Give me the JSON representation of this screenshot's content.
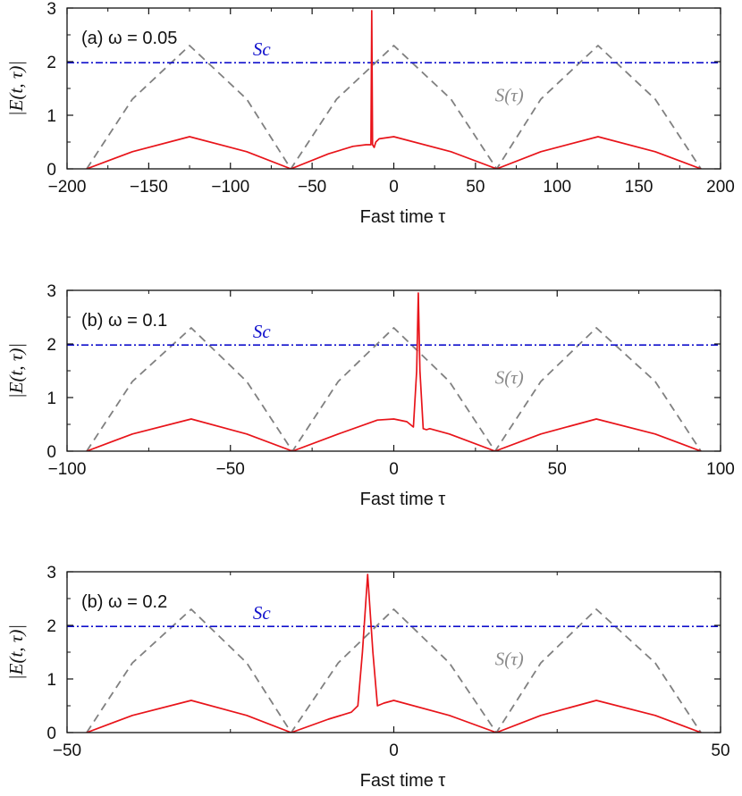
{
  "chart_data": [
    {
      "type": "line",
      "panel_label": "(a) ω = 0.05",
      "xlabel": "Fast time τ",
      "ylabel": "|E(t, τ)|",
      "xlim": [
        -200,
        200
      ],
      "ylim": [
        0,
        3
      ],
      "xticks": [
        "−200",
        "−150",
        "−100",
        "−50",
        "0",
        "50",
        "100",
        "150",
        "200"
      ],
      "yticks": [
        "0",
        "1",
        "2",
        "3"
      ],
      "grid": false,
      "annotations": {
        "threshold_label": "Sc",
        "threshold_value": 1.98,
        "background_label": "S(τ)"
      },
      "series": [
        {
          "style": "dashed",
          "color": "#808080",
          "x": [
            -188,
            -160,
            -125,
            -90,
            -63,
            -35,
            0,
            35,
            63,
            90,
            125,
            160,
            188
          ],
          "y": [
            0,
            1.3,
            2.3,
            1.3,
            0,
            1.3,
            2.3,
            1.3,
            0,
            1.3,
            2.3,
            1.3,
            0
          ]
        },
        {
          "style": "dashdot",
          "color": "#1010cc",
          "x": [
            -200,
            200
          ],
          "y": [
            1.98,
            1.98
          ]
        },
        {
          "style": "solid",
          "color": "#e8141a",
          "x": [
            -188,
            -160,
            -125,
            -90,
            -63,
            -40,
            -25,
            -17,
            -14,
            -13.5,
            -13,
            -12,
            -11,
            -9,
            0,
            35,
            63,
            90,
            125,
            160,
            188
          ],
          "y": [
            0,
            0.32,
            0.6,
            0.32,
            0,
            0.28,
            0.42,
            0.45,
            0.45,
            2.95,
            0.45,
            0.4,
            0.5,
            0.56,
            0.6,
            0.32,
            0,
            0.32,
            0.6,
            0.32,
            0
          ]
        }
      ]
    },
    {
      "type": "line",
      "panel_label": "(b) ω = 0.1",
      "xlabel": "Fast time τ",
      "ylabel": "|E(t, τ)|",
      "xlim": [
        -100,
        100
      ],
      "ylim": [
        0,
        3
      ],
      "xticks": [
        "−100",
        "−50",
        "0",
        "50",
        "100"
      ],
      "yticks": [
        "0",
        "1",
        "2",
        "3"
      ],
      "grid": false,
      "annotations": {
        "threshold_label": "Sc",
        "threshold_value": 1.98,
        "background_label": "S(τ)"
      },
      "series": [
        {
          "style": "dashed",
          "color": "#808080",
          "x": [
            -94,
            -80,
            -62,
            -45,
            -31,
            -17,
            0,
            17,
            31,
            45,
            62,
            80,
            94
          ],
          "y": [
            0,
            1.3,
            2.3,
            1.3,
            0,
            1.3,
            2.3,
            1.3,
            0,
            1.3,
            2.3,
            1.3,
            0
          ]
        },
        {
          "style": "dashdot",
          "color": "#1010cc",
          "x": [
            -100,
            100
          ],
          "y": [
            1.98,
            1.98
          ]
        },
        {
          "style": "solid",
          "color": "#e8141a",
          "x": [
            -94,
            -80,
            -62,
            -45,
            -31,
            -17,
            -5,
            0,
            4,
            6,
            7,
            7.5,
            8,
            9,
            10,
            11,
            17,
            31,
            45,
            62,
            80,
            94
          ],
          "y": [
            0,
            0.32,
            0.6,
            0.32,
            0,
            0.32,
            0.58,
            0.6,
            0.55,
            0.45,
            1.5,
            2.95,
            1.5,
            0.42,
            0.4,
            0.42,
            0.32,
            0,
            0.32,
            0.6,
            0.32,
            0
          ]
        }
      ]
    },
    {
      "type": "line",
      "panel_label": "(b) ω = 0.2",
      "xlabel": "Fast time τ",
      "ylabel": "|E(t, τ)|",
      "xlim": [
        -50,
        50
      ],
      "ylim": [
        0,
        3
      ],
      "xticks": [
        "−50",
        "0",
        "50"
      ],
      "yticks": [
        "0",
        "1",
        "2",
        "3"
      ],
      "grid": false,
      "annotations": {
        "threshold_label": "Sc",
        "threshold_value": 1.98,
        "background_label": "S(τ)"
      },
      "series": [
        {
          "style": "dashed",
          "color": "#808080",
          "x": [
            -47,
            -40,
            -31,
            -22.5,
            -15.7,
            -8.5,
            0,
            8.5,
            15.7,
            22.5,
            31,
            40,
            47
          ],
          "y": [
            0,
            1.3,
            2.3,
            1.3,
            0,
            1.3,
            2.3,
            1.3,
            0,
            1.3,
            2.3,
            1.3,
            0
          ]
        },
        {
          "style": "dashdot",
          "color": "#1010cc",
          "x": [
            -50,
            50
          ],
          "y": [
            1.98,
            1.98
          ]
        },
        {
          "style": "solid",
          "color": "#e8141a",
          "x": [
            -47,
            -40,
            -31,
            -22.5,
            -15.7,
            -10,
            -6.5,
            -5.5,
            -4.8,
            -4,
            -3.2,
            -2.5,
            -1.5,
            0,
            8.5,
            15.7,
            22.5,
            31,
            40,
            47
          ],
          "y": [
            0,
            0.32,
            0.6,
            0.32,
            0,
            0.25,
            0.38,
            0.5,
            1.5,
            2.95,
            1.5,
            0.5,
            0.55,
            0.6,
            0.32,
            0,
            0.32,
            0.6,
            0.32,
            0
          ]
        }
      ]
    }
  ]
}
